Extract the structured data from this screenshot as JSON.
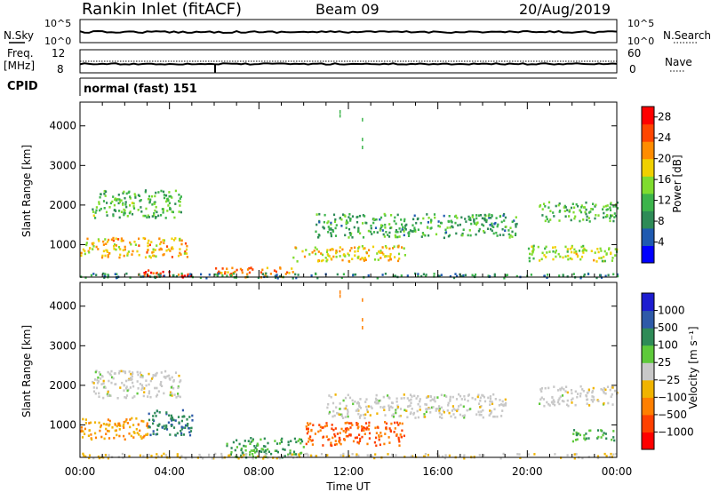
{
  "header": {
    "title": "Rankin Inlet (fitACF)",
    "beam": "Beam 09",
    "date": "20/Aug/2019"
  },
  "top_panels": {
    "nsky_label": "N.Sky",
    "nsearch_label": "N.Search",
    "nsky_ticks": [
      "10^5",
      "10^0"
    ],
    "nsky_ticks_right": [
      "10^5",
      "10^0"
    ],
    "freq_label_1": "Freq.",
    "freq_label_2": "[MHz]",
    "freq_ticks": [
      "12",
      "8"
    ],
    "nave_ticks": [
      "60",
      "0"
    ],
    "nave_label": "Nave",
    "cpid_label": "CPID",
    "cpid_value": "normal (fast) 151"
  },
  "chart_data": [
    {
      "type": "heatmap",
      "name": "power",
      "ylabel": "Slant Range [km]",
      "ylim": [
        180,
        4600
      ],
      "xlim": [
        0,
        24
      ],
      "yticks": [
        "1000",
        "2000",
        "3000",
        "4000"
      ],
      "colorbar": {
        "label": "Power [dB]",
        "ticks": [
          "4",
          "8",
          "12",
          "16",
          "20",
          "24",
          "28"
        ],
        "range": [
          0,
          30
        ],
        "colors": [
          "#0000ff",
          "#1f5ab0",
          "#2e8b57",
          "#3cb44b",
          "#7fdc2e",
          "#f0d000",
          "#ff8c00",
          "#ff4500",
          "#ff0000"
        ]
      },
      "scatter_bands": [
        {
          "t0": 0.0,
          "t1": 4.8,
          "r0": 700,
          "r1": 1200,
          "value": 20
        },
        {
          "t0": 2.5,
          "t1": 5.0,
          "r0": 200,
          "r1": 400,
          "value": 28
        },
        {
          "t0": 6.0,
          "t1": 9.5,
          "r0": 200,
          "r1": 450,
          "value": 24
        },
        {
          "t0": 9.5,
          "t1": 14.5,
          "r0": 600,
          "r1": 1000,
          "value": 18
        },
        {
          "t0": 0.0,
          "t1": 24.0,
          "r0": 180,
          "r1": 300,
          "value": 8
        },
        {
          "t0": 0.5,
          "t1": 4.5,
          "r0": 1700,
          "r1": 2400,
          "value": 12
        },
        {
          "t0": 10.5,
          "t1": 19.5,
          "r0": 1200,
          "r1": 1800,
          "value": 10
        },
        {
          "t0": 20.5,
          "t1": 24.0,
          "r0": 1600,
          "r1": 2100,
          "value": 12
        },
        {
          "t0": 20.0,
          "t1": 24.0,
          "r0": 600,
          "r1": 1000,
          "value": 16
        }
      ]
    },
    {
      "type": "heatmap",
      "name": "velocity",
      "ylabel": "Slant Range [km]",
      "xlabel": "Time UT",
      "ylim": [
        180,
        4600
      ],
      "xlim": [
        0,
        24
      ],
      "xticks": [
        "00:00",
        "04:00",
        "08:00",
        "12:00",
        "16:00",
        "20:00",
        "00:00"
      ],
      "yticks": [
        "1000",
        "2000",
        "3000",
        "4000"
      ],
      "colorbar": {
        "label": "Velocity [m s⁻¹]",
        "ticks": [
          "1000",
          "500",
          "100",
          "25",
          "−25",
          "−100",
          "−500",
          "−1000"
        ],
        "colors": [
          "#1c1cd0",
          "#2e5aa8",
          "#2e8b57",
          "#5ec93a",
          "#c8c8c8",
          "#f0b400",
          "#ff7f00",
          "#ff4000",
          "#ff0000"
        ]
      },
      "scatter_bands": [
        {
          "t0": 0.0,
          "t1": 3.0,
          "r0": 650,
          "r1": 1200,
          "value": -100
        },
        {
          "t0": 3.0,
          "t1": 5.0,
          "r0": 700,
          "r1": 1400,
          "value": 500
        },
        {
          "t0": 0.5,
          "t1": 4.5,
          "r0": 1700,
          "r1": 2400,
          "value": 0
        },
        {
          "t0": 6.5,
          "t1": 10.0,
          "r0": 200,
          "r1": 700,
          "value": 100
        },
        {
          "t0": 10.0,
          "t1": 14.5,
          "r0": 500,
          "r1": 1100,
          "value": -500
        },
        {
          "t0": 0.0,
          "t1": 24.0,
          "r0": 180,
          "r1": 300,
          "value": -25
        },
        {
          "t0": 11.0,
          "t1": 19.0,
          "r0": 1200,
          "r1": 1800,
          "value": 0
        },
        {
          "t0": 20.5,
          "t1": 24.0,
          "r0": 1500,
          "r1": 2000,
          "value": 0
        },
        {
          "t0": 22.0,
          "t1": 24.0,
          "r0": 600,
          "r1": 900,
          "value": 100
        }
      ]
    }
  ]
}
